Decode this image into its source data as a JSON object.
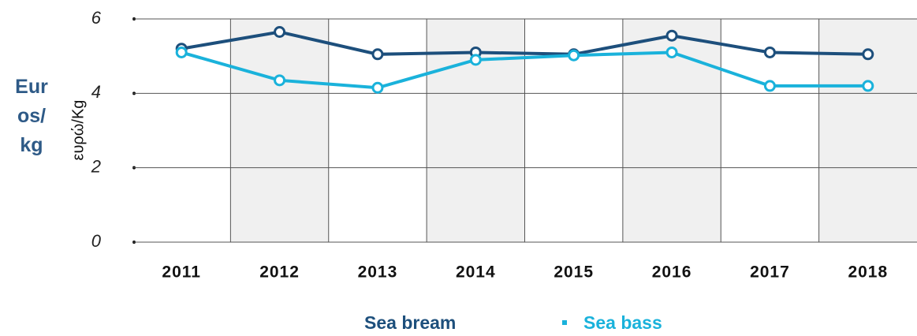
{
  "chart_data": {
    "type": "line",
    "y_label": "Euros/kg",
    "y_axis_title": "ευρώ/Kg",
    "categories": [
      "2011",
      "2012",
      "2013",
      "2014",
      "2015",
      "2016",
      "2017",
      "2018"
    ],
    "series": [
      {
        "name": "Sea bream",
        "color": "#1d4f7c",
        "values": [
          5.2,
          5.65,
          5.05,
          5.1,
          5.05,
          5.55,
          5.1,
          5.05
        ]
      },
      {
        "name": "Sea bass",
        "color": "#1ab2db",
        "values": [
          5.1,
          4.35,
          4.15,
          4.9,
          5.02,
          5.1,
          4.2,
          4.2
        ]
      }
    ],
    "ylim": [
      0,
      6
    ],
    "yticks": [
      0,
      2,
      4,
      6
    ],
    "grid": true
  }
}
